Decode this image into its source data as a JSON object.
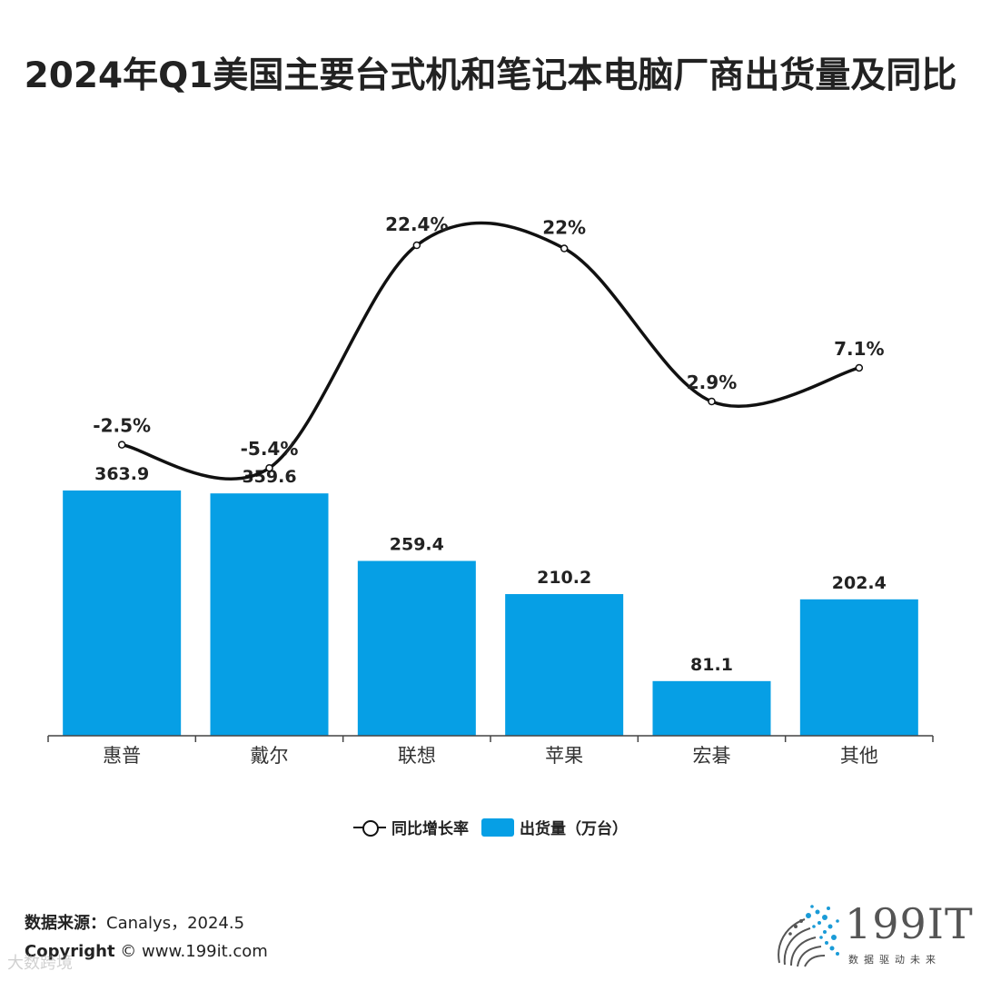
{
  "title": "2024年Q1美国主要台式机和笔记本电脑厂商出货量及同比",
  "chart_data": {
    "type": "bar",
    "categories": [
      "惠普",
      "戴尔",
      "联想",
      "苹果",
      "宏碁",
      "其他"
    ],
    "series": [
      {
        "name": "出货量（万台）",
        "type": "bar",
        "values": [
          363.9,
          359.6,
          259.4,
          210.2,
          81.1,
          202.4
        ],
        "labels": [
          "363.9",
          "359.6",
          "259.4",
          "210.2",
          "81.1",
          "202.4"
        ],
        "color": "#069fe5"
      },
      {
        "name": "同比增长率",
        "type": "line",
        "smooth": true,
        "values": [
          -2.5,
          -5.4,
          22.4,
          22,
          2.9,
          7.1
        ],
        "labels": [
          "-2.5%",
          "-5.4%",
          "22.4%",
          "22%",
          "2.9%",
          "7.1%"
        ],
        "color": "#111111"
      }
    ],
    "legend": "bottom-center",
    "grid": false
  },
  "legend": {
    "line_label": "同比增长率",
    "bar_label": "出货量（万台）"
  },
  "footer": {
    "source_label": "数据来源：",
    "source_value": "Canalys，2024.5",
    "copyright_label": "Copyright",
    "copyright_value": "© www.199it.com"
  },
  "logo": {
    "text": "199IT",
    "subtitle": "数据驱动未来"
  },
  "watermark": "大数跨境"
}
